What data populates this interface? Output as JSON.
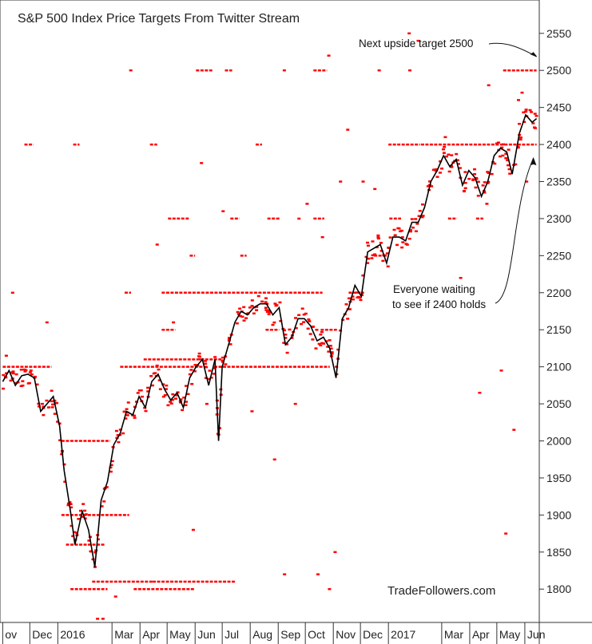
{
  "chart_data": {
    "type": "scatter",
    "title": "S&P 500 Index Price Targets From Twitter Stream",
    "watermark": "TradeFollowers.com",
    "ylim": [
      1755,
      2595
    ],
    "y_ticks": [
      1800,
      1850,
      1900,
      1950,
      2000,
      2050,
      2100,
      2150,
      2200,
      2250,
      2300,
      2350,
      2400,
      2450,
      2500,
      2550
    ],
    "y_axis_position": "right",
    "grid": false,
    "x_range": [
      "2015-10-29",
      "2017-06-17"
    ],
    "x_ticks": [
      {
        "label": "ov",
        "date": "2015-11-01"
      },
      {
        "label": "Dec",
        "date": "2015-12-01"
      },
      {
        "label": "2016",
        "date": "2016-01-01"
      },
      {
        "label": "Mar",
        "date": "2016-03-01"
      },
      {
        "label": "Apr",
        "date": "2016-04-01"
      },
      {
        "label": "May",
        "date": "2016-05-01"
      },
      {
        "label": "Jun",
        "date": "2016-06-01"
      },
      {
        "label": "Jul",
        "date": "2016-07-01"
      },
      {
        "label": "Aug",
        "date": "2016-08-01"
      },
      {
        "label": "Sep",
        "date": "2016-09-01"
      },
      {
        "label": "Oct",
        "date": "2016-10-01"
      },
      {
        "label": "Nov",
        "date": "2016-11-01"
      },
      {
        "label": "Dec",
        "date": "2016-12-01"
      },
      {
        "label": "2017",
        "date": "2017-01-01"
      },
      {
        "label": "Mar",
        "date": "2017-03-01"
      },
      {
        "label": "Apr",
        "date": "2017-04-01"
      },
      {
        "label": "May",
        "date": "2017-05-01"
      },
      {
        "label": "Jun",
        "date": "2017-06-01"
      }
    ],
    "series": [
      {
        "kind": "price",
        "color": "#000000",
        "points": [
          [
            "2015-11-01",
            2080
          ],
          [
            "2015-11-08",
            2095
          ],
          [
            "2015-11-15",
            2075
          ],
          [
            "2015-11-22",
            2088
          ],
          [
            "2015-11-29",
            2090
          ],
          [
            "2015-12-06",
            2085
          ],
          [
            "2015-12-13",
            2040
          ],
          [
            "2015-12-20",
            2050
          ],
          [
            "2015-12-27",
            2060
          ],
          [
            "2016-01-03",
            2020
          ],
          [
            "2016-01-08",
            1960
          ],
          [
            "2016-01-15",
            1905
          ],
          [
            "2016-01-20",
            1860
          ],
          [
            "2016-01-28",
            1905
          ],
          [
            "2016-02-04",
            1880
          ],
          [
            "2016-02-11",
            1830
          ],
          [
            "2016-02-18",
            1920
          ],
          [
            "2016-02-25",
            1945
          ],
          [
            "2016-03-03",
            1995
          ],
          [
            "2016-03-10",
            2010
          ],
          [
            "2016-03-17",
            2040
          ],
          [
            "2016-03-24",
            2035
          ],
          [
            "2016-03-31",
            2060
          ],
          [
            "2016-04-07",
            2045
          ],
          [
            "2016-04-14",
            2080
          ],
          [
            "2016-04-21",
            2090
          ],
          [
            "2016-04-28",
            2070
          ],
          [
            "2016-05-05",
            2055
          ],
          [
            "2016-05-12",
            2065
          ],
          [
            "2016-05-19",
            2045
          ],
          [
            "2016-05-26",
            2085
          ],
          [
            "2016-06-02",
            2100
          ],
          [
            "2016-06-09",
            2110
          ],
          [
            "2016-06-16",
            2075
          ],
          [
            "2016-06-23",
            2110
          ],
          [
            "2016-06-27",
            2000
          ],
          [
            "2016-07-01",
            2100
          ],
          [
            "2016-07-08",
            2130
          ],
          [
            "2016-07-15",
            2160
          ],
          [
            "2016-07-22",
            2175
          ],
          [
            "2016-07-29",
            2170
          ],
          [
            "2016-08-05",
            2180
          ],
          [
            "2016-08-12",
            2185
          ],
          [
            "2016-08-19",
            2185
          ],
          [
            "2016-08-26",
            2170
          ],
          [
            "2016-09-02",
            2180
          ],
          [
            "2016-09-09",
            2130
          ],
          [
            "2016-09-16",
            2140
          ],
          [
            "2016-09-23",
            2165
          ],
          [
            "2016-09-30",
            2165
          ],
          [
            "2016-10-07",
            2155
          ],
          [
            "2016-10-14",
            2135
          ],
          [
            "2016-10-21",
            2140
          ],
          [
            "2016-10-28",
            2125
          ],
          [
            "2016-11-04",
            2085
          ],
          [
            "2016-11-11",
            2165
          ],
          [
            "2016-11-18",
            2180
          ],
          [
            "2016-11-25",
            2210
          ],
          [
            "2016-12-02",
            2195
          ],
          [
            "2016-12-09",
            2255
          ],
          [
            "2016-12-16",
            2260
          ],
          [
            "2016-12-23",
            2265
          ],
          [
            "2016-12-30",
            2240
          ],
          [
            "2017-01-06",
            2275
          ],
          [
            "2017-01-13",
            2275
          ],
          [
            "2017-01-20",
            2270
          ],
          [
            "2017-01-27",
            2295
          ],
          [
            "2017-02-03",
            2295
          ],
          [
            "2017-02-10",
            2315
          ],
          [
            "2017-02-17",
            2350
          ],
          [
            "2017-02-24",
            2365
          ],
          [
            "2017-03-03",
            2385
          ],
          [
            "2017-03-10",
            2370
          ],
          [
            "2017-03-17",
            2380
          ],
          [
            "2017-03-24",
            2345
          ],
          [
            "2017-03-31",
            2365
          ],
          [
            "2017-04-07",
            2355
          ],
          [
            "2017-04-14",
            2330
          ],
          [
            "2017-04-21",
            2350
          ],
          [
            "2017-04-28",
            2385
          ],
          [
            "2017-05-05",
            2395
          ],
          [
            "2017-05-12",
            2390
          ],
          [
            "2017-05-18",
            2360
          ],
          [
            "2017-05-26",
            2415
          ],
          [
            "2017-06-02",
            2440
          ],
          [
            "2017-06-09",
            2430
          ],
          [
            "2017-06-14",
            2435
          ]
        ]
      },
      {
        "kind": "targets",
        "color": "#ff0000",
        "levels": [
          {
            "value": 2500,
            "ranges": [
              [
                "2016-03-20",
                "2016-03-24"
              ],
              [
                "2016-06-02",
                "2016-06-20"
              ],
              [
                "2016-07-04",
                "2016-07-12"
              ],
              [
                "2016-09-06",
                "2016-09-10"
              ],
              [
                "2016-10-10",
                "2016-10-25"
              ],
              [
                "2016-12-20",
                "2016-12-24"
              ],
              [
                "2017-01-23",
                "2017-01-27"
              ],
              [
                "2017-05-08",
                "2017-06-14"
              ]
            ]
          },
          {
            "value": 2400,
            "ranges": [
              [
                "2015-11-25",
                "2015-12-05"
              ],
              [
                "2016-01-18",
                "2016-01-25"
              ],
              [
                "2016-04-12",
                "2016-04-20"
              ],
              [
                "2016-08-07",
                "2016-08-14"
              ],
              [
                "2017-01-01",
                "2017-02-05"
              ],
              [
                "2017-02-06",
                "2017-06-14"
              ]
            ]
          },
          {
            "value": 2300,
            "ranges": [
              [
                "2016-05-02",
                "2016-05-25"
              ],
              [
                "2016-07-10",
                "2016-07-20"
              ],
              [
                "2016-08-20",
                "2016-09-03"
              ],
              [
                "2016-10-10",
                "2016-10-22"
              ],
              [
                "2017-01-02",
                "2017-01-15"
              ],
              [
                "2017-03-08",
                "2017-03-18"
              ],
              [
                "2017-04-08",
                "2017-04-16"
              ]
            ]
          },
          {
            "value": 2250,
            "ranges": [
              [
                "2016-05-26",
                "2016-06-01"
              ],
              [
                "2016-07-21",
                "2016-07-28"
              ],
              [
                "2016-12-16",
                "2016-12-28"
              ]
            ]
          },
          {
            "value": 2200,
            "ranges": [
              [
                "2016-03-15",
                "2016-03-22"
              ],
              [
                "2016-04-25",
                "2016-10-20"
              ],
              [
                "2016-11-18",
                "2016-12-05"
              ]
            ]
          },
          {
            "value": 2150,
            "ranges": [
              [
                "2016-04-25",
                "2016-05-10"
              ],
              [
                "2016-08-18",
                "2016-09-02"
              ],
              [
                "2016-10-18",
                "2016-11-05"
              ]
            ]
          },
          {
            "value": 2110,
            "ranges": [
              [
                "2016-04-05",
                "2016-06-30"
              ]
            ]
          },
          {
            "value": 2100,
            "ranges": [
              [
                "2015-11-01",
                "2015-12-25"
              ],
              [
                "2016-03-10",
                "2016-06-15"
              ],
              [
                "2016-06-22",
                "2016-10-28"
              ]
            ]
          },
          {
            "value": 2000,
            "ranges": [
              [
                "2016-01-05",
                "2016-02-28"
              ]
            ]
          },
          {
            "value": 1900,
            "ranges": [
              [
                "2016-01-05",
                "2016-03-20"
              ]
            ]
          },
          {
            "value": 1860,
            "ranges": [
              [
                "2016-01-10",
                "2016-02-22"
              ]
            ]
          },
          {
            "value": 1810,
            "ranges": [
              [
                "2016-02-08",
                "2016-04-15"
              ],
              [
                "2016-04-15",
                "2016-07-16"
              ]
            ]
          },
          {
            "value": 1800,
            "ranges": [
              [
                "2016-01-15",
                "2016-02-25"
              ],
              [
                "2016-03-25",
                "2016-05-31"
              ],
              [
                "2016-10-26",
                "2016-10-30"
              ]
            ]
          }
        ],
        "scatter": [
          [
            "2015-11-12",
            2200
          ],
          [
            "2015-11-05",
            2115
          ],
          [
            "2015-12-20",
            2160
          ],
          [
            "2016-02-14",
            1760
          ],
          [
            "2016-02-20",
            1760
          ],
          [
            "2016-03-05",
            1790
          ],
          [
            "2016-04-20",
            2265
          ],
          [
            "2016-05-08",
            2160
          ],
          [
            "2016-05-30",
            1880
          ],
          [
            "2016-06-08",
            2375
          ],
          [
            "2016-06-14",
            2050
          ],
          [
            "2016-07-02",
            2310
          ],
          [
            "2016-08-03",
            2040
          ],
          [
            "2016-08-28",
            1975
          ],
          [
            "2016-09-08",
            1820
          ],
          [
            "2016-09-20",
            2050
          ],
          [
            "2016-09-24",
            2300
          ],
          [
            "2016-10-03",
            2320
          ],
          [
            "2016-10-15",
            1820
          ],
          [
            "2016-10-20",
            2275
          ],
          [
            "2016-10-27",
            2520
          ],
          [
            "2016-11-03",
            1850
          ],
          [
            "2016-11-09",
            2350
          ],
          [
            "2016-11-17",
            2420
          ],
          [
            "2016-12-04",
            2350
          ],
          [
            "2016-12-17",
            2340
          ],
          [
            "2017-01-24",
            2550
          ],
          [
            "2017-02-03",
            2540
          ],
          [
            "2017-03-05",
            2410
          ],
          [
            "2017-03-22",
            2220
          ],
          [
            "2017-04-12",
            2065
          ],
          [
            "2017-04-20",
            2320
          ],
          [
            "2017-04-22",
            2480
          ],
          [
            "2017-05-06",
            2095
          ],
          [
            "2017-05-11",
            1875
          ],
          [
            "2017-05-20",
            2015
          ],
          [
            "2017-05-25",
            2460
          ],
          [
            "2017-05-29",
            2470
          ],
          [
            "2017-06-03",
            2350
          ]
        ]
      }
    ],
    "annotations": [
      {
        "text": "Next upside target 2500",
        "arrow_to": [
          "2017-06-14",
          2510
        ]
      },
      {
        "text_lines": [
          "Everyone waiting",
          "to see if 2400 holds"
        ],
        "arrow_to": [
          "2017-06-14",
          2390
        ]
      }
    ]
  }
}
